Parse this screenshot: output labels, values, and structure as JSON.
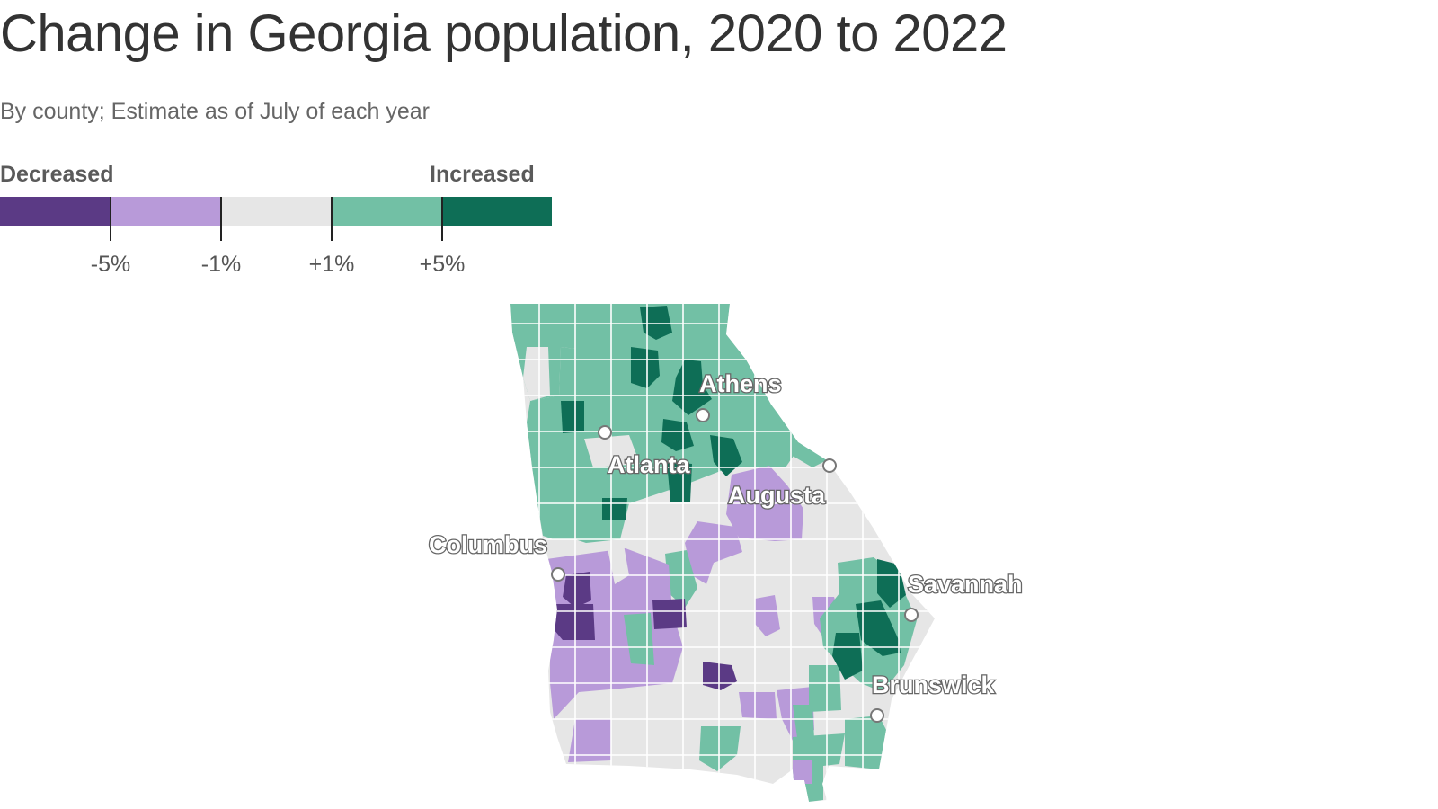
{
  "title": "Change in Georgia population, 2020 to 2022",
  "subtitle": "By county; Estimate as of July of each year",
  "legend": {
    "left_label": "Decreased",
    "right_label": "Increased",
    "ticks": [
      "-5%",
      "-1%",
      "+1%",
      "+5%"
    ],
    "bins": [
      {
        "range": "below -5%",
        "color": "#5b3a85"
      },
      {
        "range": "-5% to -1%",
        "color": "#b89ad9"
      },
      {
        "range": "-1% to +1%",
        "color": "#e6e6e6"
      },
      {
        "range": "+1% to +5%",
        "color": "#72c0a5"
      },
      {
        "range": "above +5%",
        "color": "#0e6e56"
      }
    ]
  },
  "cities": [
    "Athens",
    "Atlanta",
    "Augusta",
    "Columbus",
    "Savannah",
    "Brunswick"
  ],
  "map_colors": {
    "border": "#ffffff",
    "marker_fill": "#ffffff",
    "marker_stroke": "#777777"
  }
}
